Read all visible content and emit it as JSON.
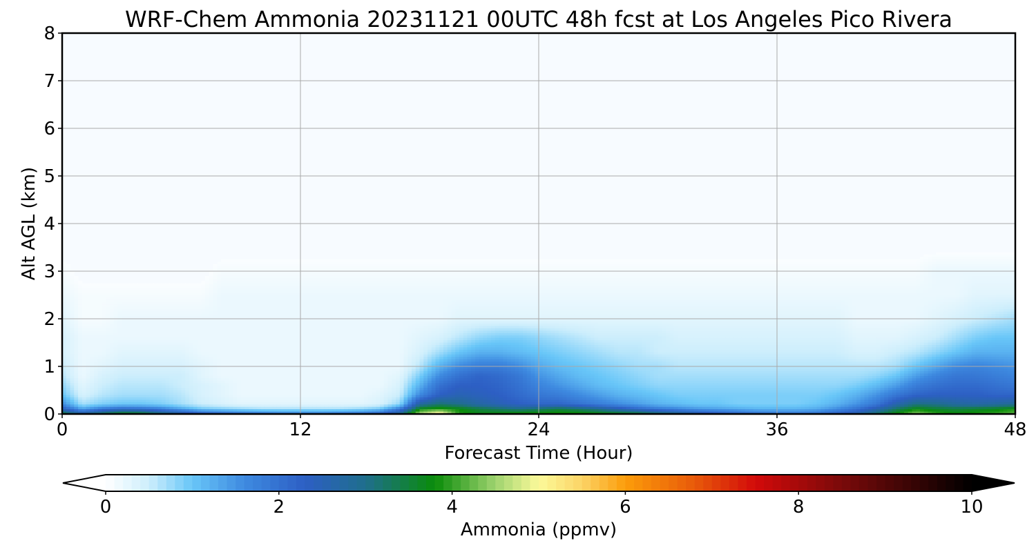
{
  "chart_data": {
    "type": "heatmap",
    "title": "WRF-Chem Ammonia  20231121 00UTC 48h fcst at Los Angeles Pico Rivera",
    "xlabel": "Forecast Time (Hour)",
    "ylabel": "Alt AGL (km)",
    "xlim": [
      0,
      48
    ],
    "ylim": [
      0,
      8
    ],
    "xticks": [
      0,
      12,
      24,
      36,
      48
    ],
    "yticks": [
      0,
      1,
      2,
      3,
      4,
      5,
      6,
      7,
      8
    ],
    "grid": true,
    "colorbar": {
      "label": "Ammonia  (ppmv)",
      "range": [
        0,
        10
      ],
      "ticks": [
        0,
        2,
        4,
        6,
        8,
        10
      ],
      "extend": "both",
      "orientation": "horizontal",
      "placement": "bottom",
      "stops": [
        {
          "v": 0.0,
          "c": "#ffffff"
        },
        {
          "v": 0.5,
          "c": "#cdeefc"
        },
        {
          "v": 1.0,
          "c": "#68c6f8"
        },
        {
          "v": 1.6,
          "c": "#3e8ae0"
        },
        {
          "v": 2.3,
          "c": "#2d5fc4"
        },
        {
          "v": 3.0,
          "c": "#1f6e8c"
        },
        {
          "v": 3.8,
          "c": "#0a8c0a"
        },
        {
          "v": 4.5,
          "c": "#9fd36f"
        },
        {
          "v": 5.0,
          "c": "#fcfa9a"
        },
        {
          "v": 5.5,
          "c": "#fcd466"
        },
        {
          "v": 6.0,
          "c": "#fc9c0a"
        },
        {
          "v": 6.8,
          "c": "#e85a0a"
        },
        {
          "v": 7.5,
          "c": "#d20a0a"
        },
        {
          "v": 8.5,
          "c": "#7a0a0a"
        },
        {
          "v": 10.0,
          "c": "#000000"
        }
      ]
    },
    "x": [
      0,
      1,
      2,
      3,
      4,
      5,
      6,
      7,
      8,
      9,
      10,
      11,
      12,
      13,
      14,
      15,
      16,
      17,
      18,
      19,
      20,
      21,
      22,
      23,
      24,
      25,
      26,
      27,
      28,
      29,
      30,
      31,
      32,
      33,
      34,
      35,
      36,
      37,
      38,
      39,
      40,
      41,
      42,
      43,
      44,
      45,
      46,
      47,
      48
    ],
    "y": [
      0.0,
      0.1,
      0.2,
      0.4,
      0.6,
      0.8,
      1.0,
      1.3,
      1.6,
      2.0,
      2.5,
      3.0,
      3.5,
      4.0,
      5.0,
      6.0,
      7.0,
      8.0
    ],
    "z": [
      [
        3.6,
        2.8,
        3.4,
        3.8,
        3.7,
        3.2,
        2.8,
        2.4,
        2.2,
        2.0,
        1.9,
        1.8,
        1.8,
        1.8,
        1.9,
        2.0,
        2.3,
        2.9,
        4.6,
        5.3,
        3.9,
        3.7,
        3.8,
        3.9,
        3.9,
        3.9,
        3.9,
        3.8,
        3.7,
        3.6,
        3.3,
        3.0,
        2.7,
        2.4,
        2.2,
        2.0,
        1.9,
        1.9,
        2.0,
        2.3,
        2.6,
        3.2,
        3.8,
        4.4,
        4.0,
        3.8,
        3.9,
        4.0,
        4.2
      ],
      [
        2.4,
        1.4,
        1.9,
        2.2,
        2.1,
        1.8,
        1.4,
        1.0,
        0.9,
        0.8,
        0.7,
        0.7,
        0.7,
        0.7,
        0.7,
        0.8,
        1.0,
        1.9,
        3.8,
        4.0,
        3.8,
        3.5,
        3.3,
        3.1,
        3.3,
        3.5,
        3.3,
        3.0,
        2.6,
        2.2,
        1.9,
        1.7,
        1.5,
        1.4,
        1.3,
        1.2,
        1.2,
        1.2,
        1.3,
        1.6,
        2.0,
        2.6,
        3.3,
        3.8,
        3.6,
        3.5,
        3.6,
        3.7,
        3.9
      ],
      [
        1.6,
        0.7,
        0.9,
        1.0,
        1.0,
        0.9,
        0.7,
        0.5,
        0.4,
        0.3,
        0.3,
        0.3,
        0.3,
        0.3,
        0.3,
        0.3,
        0.4,
        0.8,
        2.8,
        3.2,
        3.0,
        2.7,
        2.5,
        2.3,
        2.2,
        2.2,
        2.0,
        1.8,
        1.6,
        1.4,
        1.2,
        1.1,
        1.0,
        1.0,
        0.9,
        0.9,
        0.9,
        0.9,
        1.0,
        1.2,
        1.5,
        1.9,
        2.6,
        3.1,
        3.0,
        2.8,
        2.7,
        2.8,
        2.9
      ],
      [
        1.0,
        0.4,
        0.6,
        0.7,
        0.7,
        0.7,
        0.6,
        0.4,
        0.3,
        0.2,
        0.2,
        0.2,
        0.2,
        0.2,
        0.2,
        0.2,
        0.3,
        0.5,
        1.6,
        2.3,
        2.5,
        2.4,
        2.3,
        2.1,
        1.9,
        1.8,
        1.6,
        1.4,
        1.2,
        1.1,
        1.0,
        0.9,
        0.9,
        0.9,
        0.9,
        0.9,
        0.9,
        0.9,
        0.9,
        1.0,
        1.2,
        1.5,
        1.9,
        2.2,
        2.3,
        2.3,
        2.3,
        2.2,
        2.2
      ],
      [
        0.8,
        0.3,
        0.5,
        0.6,
        0.6,
        0.6,
        0.5,
        0.4,
        0.3,
        0.2,
        0.2,
        0.2,
        0.2,
        0.2,
        0.2,
        0.2,
        0.2,
        0.4,
        1.2,
        2.0,
        2.3,
        2.3,
        2.2,
        2.0,
        1.7,
        1.5,
        1.3,
        1.1,
        1.0,
        0.9,
        0.8,
        0.8,
        0.8,
        0.8,
        0.8,
        0.8,
        0.8,
        0.8,
        0.8,
        0.8,
        0.9,
        1.1,
        1.4,
        1.8,
        2.0,
        2.1,
        2.1,
        2.0,
        1.9
      ],
      [
        0.6,
        0.2,
        0.4,
        0.5,
        0.5,
        0.5,
        0.5,
        0.3,
        0.2,
        0.2,
        0.2,
        0.2,
        0.2,
        0.2,
        0.2,
        0.2,
        0.2,
        0.3,
        0.9,
        1.6,
        2.0,
        2.2,
        2.1,
        1.9,
        1.5,
        1.3,
        1.1,
        1.0,
        0.9,
        0.8,
        0.7,
        0.7,
        0.7,
        0.7,
        0.7,
        0.7,
        0.7,
        0.7,
        0.7,
        0.7,
        0.7,
        0.8,
        1.0,
        1.4,
        1.7,
        1.9,
        1.9,
        1.8,
        1.7
      ],
      [
        0.5,
        0.2,
        0.3,
        0.4,
        0.4,
        0.4,
        0.4,
        0.3,
        0.2,
        0.2,
        0.2,
        0.2,
        0.2,
        0.2,
        0.2,
        0.2,
        0.2,
        0.2,
        0.6,
        1.2,
        1.6,
        1.8,
        1.8,
        1.6,
        1.3,
        1.1,
        1.0,
        0.9,
        0.8,
        0.7,
        0.7,
        0.6,
        0.6,
        0.6,
        0.6,
        0.6,
        0.6,
        0.6,
        0.6,
        0.6,
        0.6,
        0.6,
        0.7,
        1.0,
        1.3,
        1.6,
        1.7,
        1.6,
        1.5
      ],
      [
        0.4,
        0.2,
        0.2,
        0.3,
        0.3,
        0.3,
        0.3,
        0.2,
        0.2,
        0.2,
        0.2,
        0.2,
        0.2,
        0.2,
        0.2,
        0.2,
        0.2,
        0.2,
        0.4,
        0.7,
        1.0,
        1.2,
        1.2,
        1.1,
        1.0,
        0.9,
        0.8,
        0.7,
        0.6,
        0.6,
        0.5,
        0.5,
        0.5,
        0.5,
        0.5,
        0.5,
        0.5,
        0.5,
        0.5,
        0.5,
        0.4,
        0.4,
        0.5,
        0.6,
        0.8,
        1.0,
        1.2,
        1.2,
        1.2
      ],
      [
        0.4,
        0.2,
        0.2,
        0.2,
        0.2,
        0.2,
        0.2,
        0.2,
        0.2,
        0.2,
        0.2,
        0.2,
        0.2,
        0.2,
        0.2,
        0.2,
        0.2,
        0.2,
        0.3,
        0.4,
        0.6,
        0.8,
        0.9,
        0.9,
        0.8,
        0.7,
        0.6,
        0.5,
        0.5,
        0.5,
        0.5,
        0.4,
        0.4,
        0.4,
        0.4,
        0.4,
        0.4,
        0.4,
        0.4,
        0.4,
        0.3,
        0.3,
        0.3,
        0.4,
        0.5,
        0.7,
        0.9,
        1.0,
        1.0
      ],
      [
        0.3,
        0.1,
        0.1,
        0.2,
        0.2,
        0.2,
        0.2,
        0.2,
        0.2,
        0.2,
        0.2,
        0.2,
        0.2,
        0.2,
        0.2,
        0.2,
        0.2,
        0.2,
        0.2,
        0.2,
        0.3,
        0.3,
        0.3,
        0.3,
        0.3,
        0.3,
        0.3,
        0.3,
        0.3,
        0.3,
        0.3,
        0.3,
        0.3,
        0.3,
        0.3,
        0.3,
        0.3,
        0.3,
        0.3,
        0.3,
        0.2,
        0.2,
        0.2,
        0.2,
        0.3,
        0.4,
        0.5,
        0.6,
        0.7
      ],
      [
        0.2,
        0.1,
        0.1,
        0.1,
        0.1,
        0.1,
        0.1,
        0.1,
        0.2,
        0.2,
        0.2,
        0.2,
        0.2,
        0.2,
        0.2,
        0.2,
        0.2,
        0.2,
        0.2,
        0.2,
        0.2,
        0.2,
        0.2,
        0.2,
        0.2,
        0.2,
        0.2,
        0.2,
        0.2,
        0.2,
        0.2,
        0.2,
        0.2,
        0.2,
        0.2,
        0.2,
        0.2,
        0.2,
        0.2,
        0.2,
        0.2,
        0.2,
        0.2,
        0.2,
        0.2,
        0.2,
        0.3,
        0.3,
        0.3
      ],
      [
        0.1,
        0.0,
        0.0,
        0.0,
        0.0,
        0.0,
        0.0,
        0.0,
        0.1,
        0.1,
        0.1,
        0.1,
        0.1,
        0.1,
        0.1,
        0.1,
        0.1,
        0.1,
        0.1,
        0.1,
        0.1,
        0.1,
        0.1,
        0.1,
        0.1,
        0.1,
        0.1,
        0.1,
        0.1,
        0.1,
        0.1,
        0.1,
        0.1,
        0.1,
        0.1,
        0.1,
        0.1,
        0.1,
        0.1,
        0.1,
        0.1,
        0.1,
        0.1,
        0.1,
        0.2,
        0.2,
        0.2,
        0.2,
        0.2
      ],
      [
        0.0,
        0.0,
        0.0,
        0.0,
        0.0,
        0.0,
        0.0,
        0.0,
        0.0,
        0.0,
        0.0,
        0.0,
        0.0,
        0.0,
        0.0,
        0.0,
        0.0,
        0.0,
        0.0,
        0.0,
        0.0,
        0.0,
        0.0,
        0.0,
        0.0,
        0.0,
        0.0,
        0.0,
        0.0,
        0.0,
        0.0,
        0.0,
        0.0,
        0.0,
        0.0,
        0.0,
        0.0,
        0.0,
        0.0,
        0.0,
        0.0,
        0.0,
        0.0,
        0.0,
        0.0,
        0.0,
        0.0,
        0.0,
        0.0
      ],
      [
        0.0,
        0.0,
        0.0,
        0.0,
        0.0,
        0.0,
        0.0,
        0.0,
        0.0,
        0.0,
        0.0,
        0.0,
        0.0,
        0.0,
        0.0,
        0.0,
        0.0,
        0.0,
        0.0,
        0.0,
        0.0,
        0.0,
        0.0,
        0.0,
        0.0,
        0.0,
        0.0,
        0.0,
        0.0,
        0.0,
        0.0,
        0.0,
        0.0,
        0.0,
        0.0,
        0.0,
        0.0,
        0.0,
        0.0,
        0.0,
        0.0,
        0.0,
        0.0,
        0.0,
        0.0,
        0.0,
        0.0,
        0.0,
        0.0
      ],
      [
        0.0,
        0.0,
        0.0,
        0.0,
        0.0,
        0.0,
        0.0,
        0.0,
        0.0,
        0.0,
        0.0,
        0.0,
        0.0,
        0.0,
        0.0,
        0.0,
        0.0,
        0.0,
        0.0,
        0.0,
        0.0,
        0.0,
        0.0,
        0.0,
        0.0,
        0.0,
        0.0,
        0.0,
        0.0,
        0.0,
        0.0,
        0.0,
        0.0,
        0.0,
        0.0,
        0.0,
        0.0,
        0.0,
        0.0,
        0.0,
        0.0,
        0.0,
        0.0,
        0.0,
        0.0,
        0.0,
        0.0,
        0.0,
        0.0
      ],
      [
        0.0,
        0.0,
        0.0,
        0.0,
        0.0,
        0.0,
        0.0,
        0.0,
        0.0,
        0.0,
        0.0,
        0.0,
        0.0,
        0.0,
        0.0,
        0.0,
        0.0,
        0.0,
        0.0,
        0.0,
        0.0,
        0.0,
        0.0,
        0.0,
        0.0,
        0.0,
        0.0,
        0.0,
        0.0,
        0.0,
        0.0,
        0.0,
        0.0,
        0.0,
        0.0,
        0.0,
        0.0,
        0.0,
        0.0,
        0.0,
        0.0,
        0.0,
        0.0,
        0.0,
        0.0,
        0.0,
        0.0,
        0.0,
        0.0
      ],
      [
        0.0,
        0.0,
        0.0,
        0.0,
        0.0,
        0.0,
        0.0,
        0.0,
        0.0,
        0.0,
        0.0,
        0.0,
        0.0,
        0.0,
        0.0,
        0.0,
        0.0,
        0.0,
        0.0,
        0.0,
        0.0,
        0.0,
        0.0,
        0.0,
        0.0,
        0.0,
        0.0,
        0.0,
        0.0,
        0.0,
        0.0,
        0.0,
        0.0,
        0.0,
        0.0,
        0.0,
        0.0,
        0.0,
        0.0,
        0.0,
        0.0,
        0.0,
        0.0,
        0.0,
        0.0,
        0.0,
        0.0,
        0.0,
        0.0
      ],
      [
        0.0,
        0.0,
        0.0,
        0.0,
        0.0,
        0.0,
        0.0,
        0.0,
        0.0,
        0.0,
        0.0,
        0.0,
        0.0,
        0.0,
        0.0,
        0.0,
        0.0,
        0.0,
        0.0,
        0.0,
        0.0,
        0.0,
        0.0,
        0.0,
        0.0,
        0.0,
        0.0,
        0.0,
        0.0,
        0.0,
        0.0,
        0.0,
        0.0,
        0.0,
        0.0,
        0.0,
        0.0,
        0.0,
        0.0,
        0.0,
        0.0,
        0.0,
        0.0,
        0.0,
        0.0,
        0.0,
        0.0,
        0.0,
        0.0
      ]
    ]
  }
}
